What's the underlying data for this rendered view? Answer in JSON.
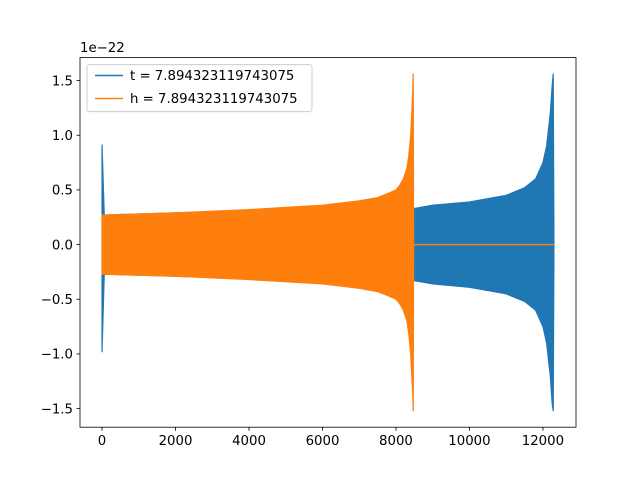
{
  "chart_data": {
    "type": "line",
    "title": "",
    "xlabel": "",
    "ylabel": "",
    "y_offset_label": "1e−22",
    "xlim": [
      -600,
      12900
    ],
    "ylim": [
      -1.67,
      1.71
    ],
    "x_ticks": [
      0,
      2000,
      4000,
      6000,
      8000,
      10000,
      12000
    ],
    "x_tick_labels": [
      "0",
      "2000",
      "4000",
      "6000",
      "8000",
      "10000",
      "12000"
    ],
    "y_ticks": [
      -1.5,
      -1.0,
      -0.5,
      0.0,
      0.5,
      1.0,
      1.5
    ],
    "y_tick_labels": [
      "−1.5",
      "−1.0",
      "−0.5",
      "0.0",
      "0.5",
      "1.0",
      "1.5"
    ],
    "grid": false,
    "legend_position": "top-left",
    "series": [
      {
        "name": "t = 7.894323119743075",
        "color": "#1f77b4",
        "style": "dense oscillation (envelope shown)",
        "x": [
          0,
          0,
          60,
          500,
          1000,
          2000,
          3000,
          4000,
          5000,
          6000,
          7000,
          8000,
          8500,
          9000,
          10000,
          11000,
          11500,
          11800,
          12000,
          12100,
          12200,
          12250,
          12280,
          12300
        ],
        "upper": [
          0.91,
          0.91,
          0.27,
          0.275,
          0.28,
          0.29,
          0.3,
          0.31,
          0.32,
          0.33,
          0.34,
          0.345,
          0.33,
          0.36,
          0.39,
          0.45,
          0.52,
          0.6,
          0.75,
          0.9,
          1.2,
          1.45,
          1.56,
          0.0
        ],
        "lower": [
          -0.98,
          -0.98,
          -0.27,
          -0.275,
          -0.28,
          -0.29,
          -0.3,
          -0.31,
          -0.32,
          -0.33,
          -0.34,
          -0.345,
          -0.33,
          -0.36,
          -0.39,
          -0.45,
          -0.52,
          -0.6,
          -0.75,
          -0.9,
          -1.2,
          -1.45,
          -1.52,
          0.0
        ]
      },
      {
        "name": "h = 7.894323119743075",
        "color": "#ff7f0e",
        "style": "dense oscillation (envelope shown)",
        "x": [
          0,
          500,
          1000,
          2000,
          3000,
          4000,
          5000,
          6000,
          7000,
          7500,
          7800,
          8000,
          8100,
          8200,
          8300,
          8350,
          8400,
          8430,
          8460,
          8470,
          8480
        ],
        "upper": [
          0.27,
          0.275,
          0.28,
          0.29,
          0.305,
          0.32,
          0.34,
          0.36,
          0.4,
          0.43,
          0.47,
          0.5,
          0.54,
          0.6,
          0.7,
          0.82,
          1.0,
          1.2,
          1.45,
          1.56,
          0.0
        ],
        "lower": [
          -0.27,
          -0.275,
          -0.28,
          -0.29,
          -0.305,
          -0.32,
          -0.34,
          -0.36,
          -0.4,
          -0.43,
          -0.47,
          -0.5,
          -0.54,
          -0.6,
          -0.7,
          -0.82,
          -1.0,
          -1.2,
          -1.4,
          -1.52,
          0.0
        ],
        "tail": {
          "x": [
            8480,
            12300
          ],
          "y": [
            0.0,
            0.0
          ]
        }
      }
    ]
  }
}
